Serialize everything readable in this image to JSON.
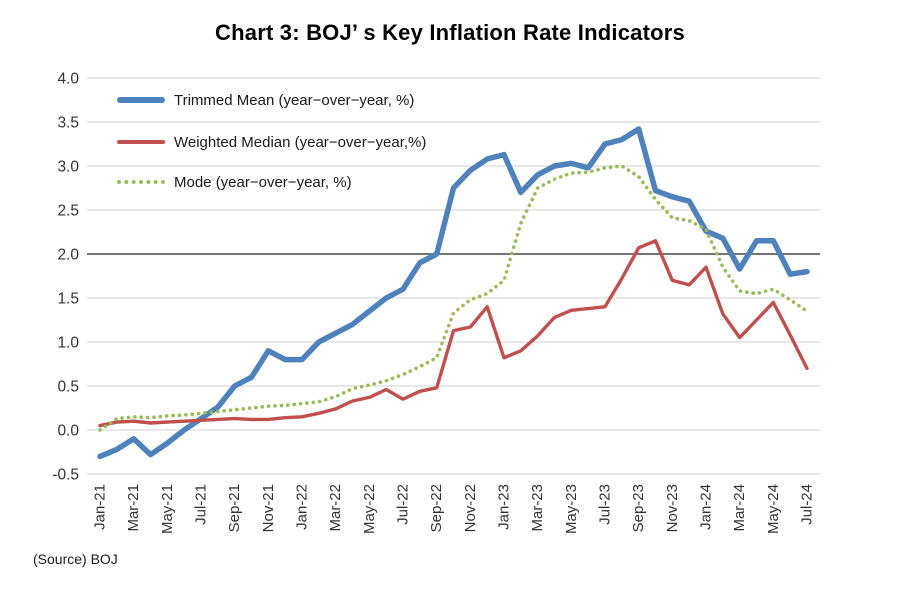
{
  "page": {
    "title": "Chart 3: BOJ’ s Key Inflation Rate Indicators",
    "source": "(Source)  BOJ"
  },
  "colors": {
    "trimmed_mean": "#4F81BD",
    "weighted_median": "#C0504D",
    "mode": "#9BBB59",
    "gridline": "#D9D9D9",
    "gridline_emphasis": "#737373",
    "tick_text": "#333333"
  },
  "chart_data": {
    "type": "line",
    "title": "Chart 3: BOJ’ s Key Inflation Rate Indicators",
    "xlabel": "",
    "ylabel": "",
    "ylim": [
      -0.5,
      4.0
    ],
    "y_ticks": [
      4.0,
      3.5,
      3.0,
      2.5,
      2.0,
      1.5,
      1.0,
      0.5,
      0.0,
      -0.5
    ],
    "emphasized_gridline": 2.0,
    "grid": "horizontal light-gray lines at 0.5 steps; darker line at 2.0",
    "legend_position": "top-left inside plot area",
    "x_tick_step": 2,
    "x": [
      "Jan-21",
      "Feb-21",
      "Mar-21",
      "Apr-21",
      "May-21",
      "Jun-21",
      "Jul-21",
      "Aug-21",
      "Sep-21",
      "Oct-21",
      "Nov-21",
      "Dec-21",
      "Jan-22",
      "Feb-22",
      "Mar-22",
      "Apr-22",
      "May-22",
      "Jun-22",
      "Jul-22",
      "Aug-22",
      "Sep-22",
      "Oct-22",
      "Nov-22",
      "Dec-22",
      "Jan-23",
      "Feb-23",
      "Mar-23",
      "Apr-23",
      "May-23",
      "Jun-23",
      "Jul-23",
      "Aug-23",
      "Sep-23",
      "Oct-23",
      "Nov-23",
      "Dec-23",
      "Jan-24",
      "Feb-24",
      "Mar-24",
      "Apr-24",
      "May-24",
      "Jun-24",
      "Jul-24"
    ],
    "series": [
      {
        "key": "trimmed_mean",
        "name": "Trimmed Mean (year−over−year, %)",
        "color": "#4F81BD",
        "style": "solid-thick",
        "values": [
          -0.3,
          -0.22,
          -0.1,
          -0.28,
          -0.15,
          0.0,
          0.13,
          0.26,
          0.5,
          0.6,
          0.9,
          0.8,
          0.8,
          1.0,
          1.1,
          1.2,
          1.35,
          1.5,
          1.6,
          1.9,
          2.0,
          2.75,
          2.95,
          3.08,
          3.13,
          2.7,
          2.9,
          3.0,
          3.03,
          2.98,
          3.25,
          3.3,
          3.42,
          2.72,
          2.65,
          2.6,
          2.26,
          2.18,
          1.83,
          2.15,
          2.15,
          1.77,
          1.8
        ]
      },
      {
        "key": "weighted_median",
        "name": "Weighted Median (year−over−year,%)",
        "color": "#C0504D",
        "style": "solid",
        "values": [
          0.05,
          0.09,
          0.1,
          0.08,
          0.09,
          0.1,
          0.11,
          0.12,
          0.13,
          0.12,
          0.12,
          0.14,
          0.15,
          0.19,
          0.24,
          0.33,
          0.37,
          0.46,
          0.35,
          0.44,
          0.48,
          1.13,
          1.17,
          1.4,
          0.82,
          0.9,
          1.07,
          1.28,
          1.36,
          1.38,
          1.4,
          1.72,
          2.07,
          2.15,
          1.7,
          1.65,
          1.85,
          1.32,
          1.05,
          1.25,
          1.45,
          1.08,
          0.7
        ]
      },
      {
        "key": "mode",
        "name": "Mode (year−over−year, %)",
        "color": "#9BBB59",
        "style": "dotted",
        "values": [
          0.0,
          0.13,
          0.15,
          0.14,
          0.16,
          0.17,
          0.19,
          0.21,
          0.23,
          0.25,
          0.27,
          0.28,
          0.3,
          0.32,
          0.38,
          0.47,
          0.51,
          0.56,
          0.63,
          0.72,
          0.82,
          1.33,
          1.48,
          1.55,
          1.7,
          2.35,
          2.75,
          2.85,
          2.92,
          2.93,
          2.98,
          3.0,
          2.88,
          2.62,
          2.41,
          2.38,
          2.28,
          1.85,
          1.58,
          1.55,
          1.6,
          1.48,
          1.35
        ]
      }
    ]
  }
}
